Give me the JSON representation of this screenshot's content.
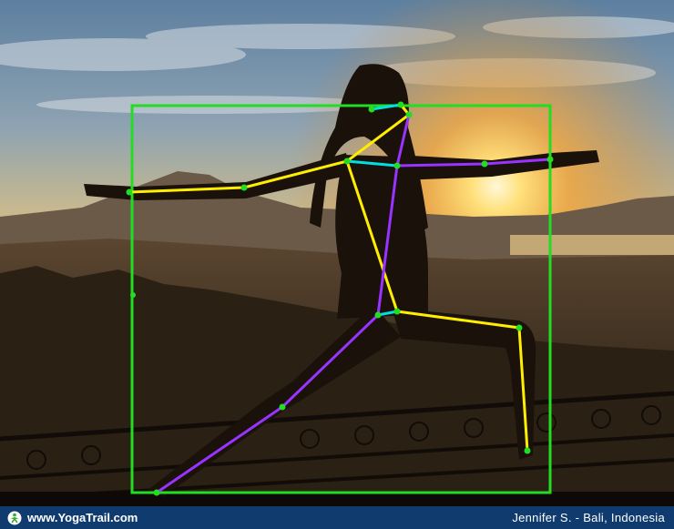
{
  "footer": {
    "site": "www.YogaTrail.com",
    "credit": "Jennifer S. - Bali, Indonesia"
  },
  "overlay": {
    "box_color": "#22dd22",
    "left_chain_color": "#ffee00",
    "right_chain_color": "#9933ff",
    "center_color": "#00e0e0",
    "keypoint_color": "#22dd22"
  },
  "icons": [
    "yogatrail-logo-icon"
  ]
}
